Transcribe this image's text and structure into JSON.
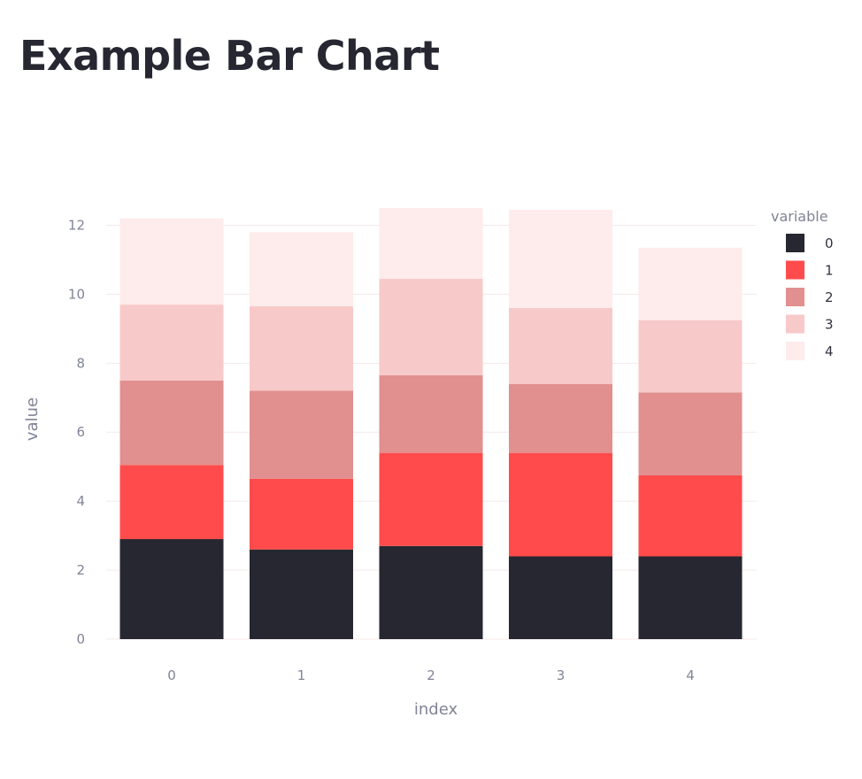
{
  "page": {
    "title": "Example Bar Chart"
  },
  "chart_data": {
    "type": "bar",
    "stacked": true,
    "categories": [
      "0",
      "1",
      "2",
      "3",
      "4"
    ],
    "series": [
      {
        "name": "0",
        "color": "#262730",
        "values": [
          2.9,
          2.6,
          2.7,
          2.4,
          2.4
        ]
      },
      {
        "name": "1",
        "color": "#ff4b4b",
        "values": [
          2.15,
          2.05,
          2.7,
          3.0,
          2.35
        ]
      },
      {
        "name": "2",
        "color": "#e18f8f",
        "values": [
          2.45,
          2.55,
          2.25,
          2.0,
          2.4
        ]
      },
      {
        "name": "3",
        "color": "#f8c9c9",
        "values": [
          2.2,
          2.45,
          2.8,
          2.2,
          2.1
        ]
      },
      {
        "name": "4",
        "color": "#fdeceb",
        "values": [
          2.5,
          2.15,
          2.05,
          2.85,
          2.1
        ]
      }
    ],
    "xlabel": "index",
    "ylabel": "value",
    "ylim": [
      0,
      12.5
    ],
    "yticks": [
      0,
      2,
      4,
      6,
      8,
      10,
      12
    ],
    "legend": {
      "title": "variable",
      "position": "right"
    },
    "grid": true
  }
}
